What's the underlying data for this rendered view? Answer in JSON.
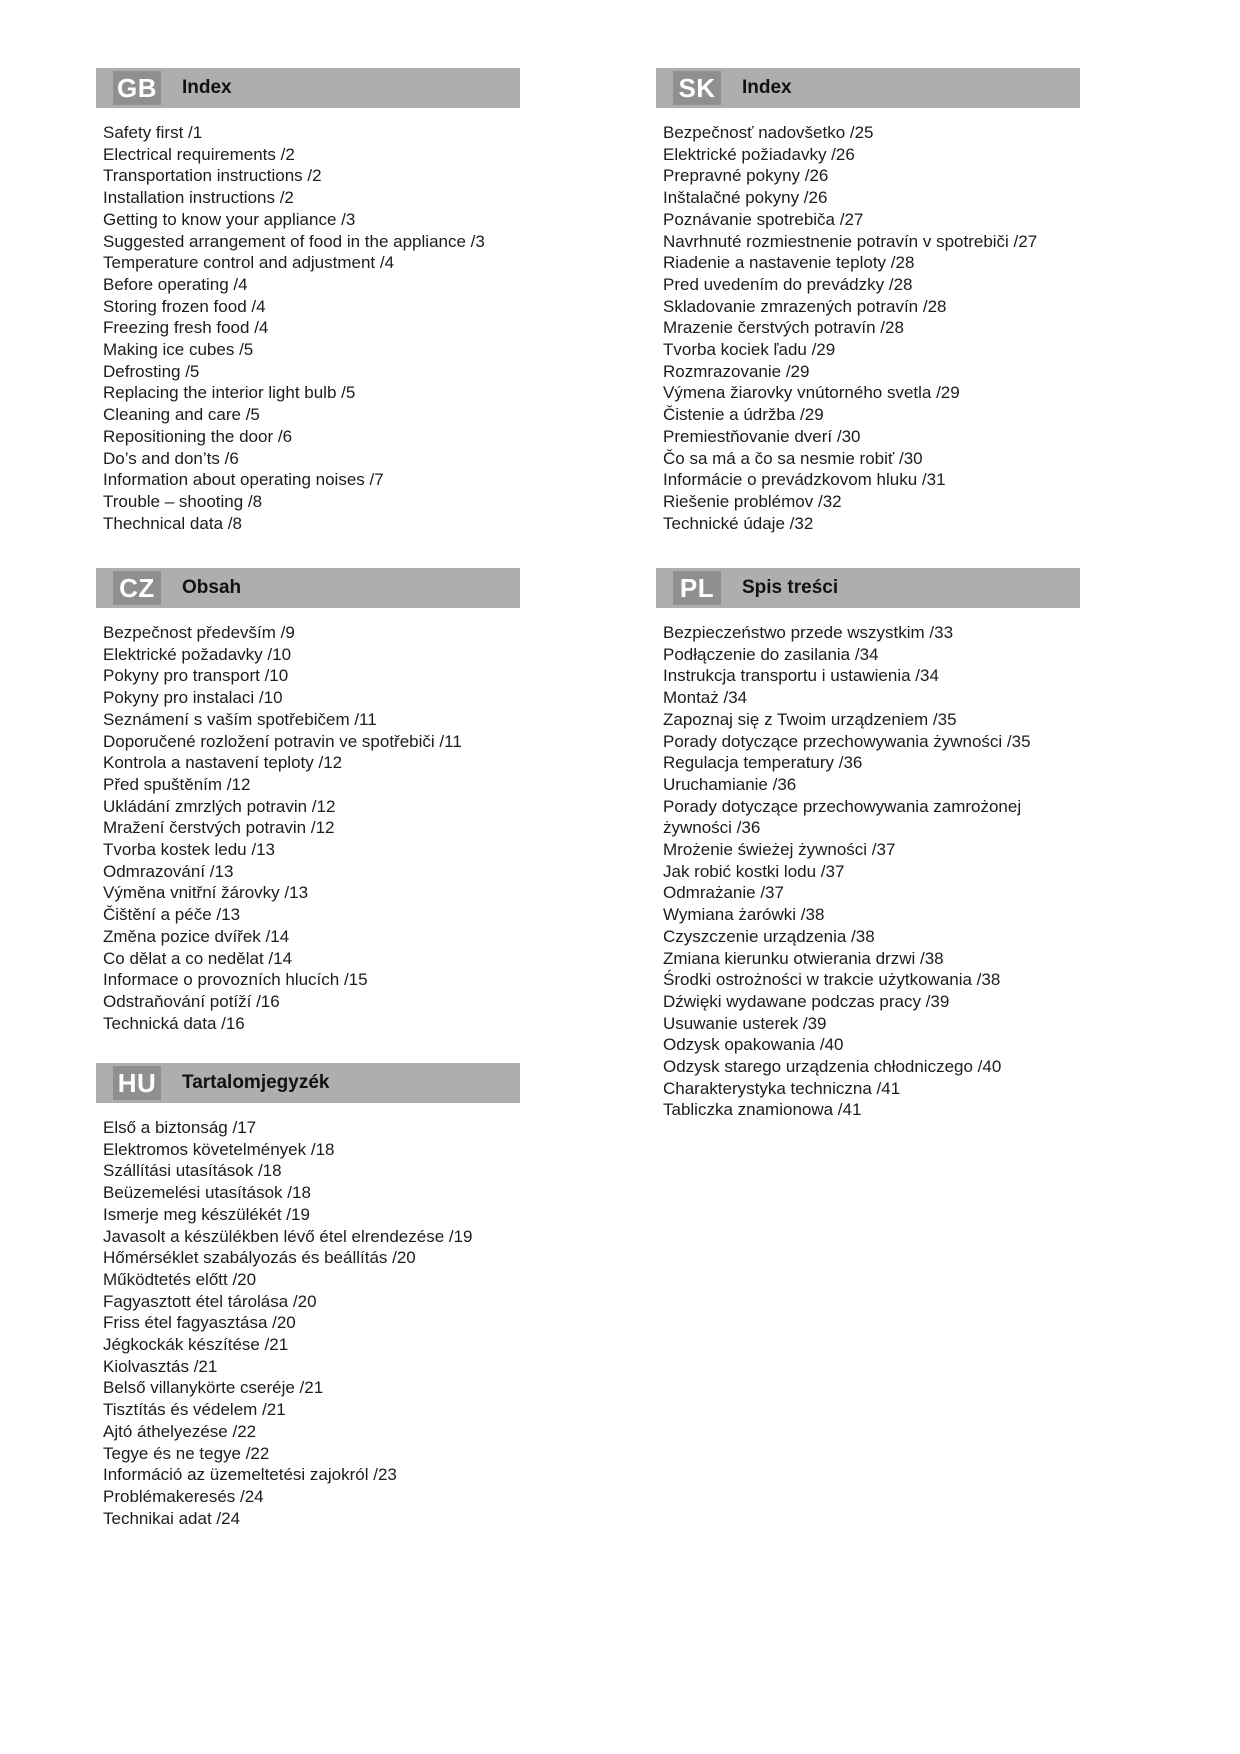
{
  "colors": {
    "page_background": "#ffffff",
    "header_bar": "#aeaeae",
    "language_badge": "#8f8f8f",
    "badge_text": "#ffffff",
    "body_text": "#1c1c1c"
  },
  "sections": [
    {
      "id": "gb",
      "code": "GB",
      "title": "Index",
      "column": "left",
      "items": [
        "Safety first /1",
        "Electrical requirements /2",
        "Transportation instructions /2",
        "Installation instructions /2",
        "Getting to know your appliance /3",
        "Suggested arrangement of food in the appliance /3",
        "Temperature control and adjustment /4",
        "Before operating /4",
        "Storing frozen food /4",
        "Freezing fresh food /4",
        "Making ice cubes /5",
        "Defrosting /5",
        "Replacing the interior light bulb /5",
        "Cleaning and care /5",
        "Repositioning the door /6",
        "Do’s and don’ts /6",
        "Information about operating noises /7",
        "Trouble – shooting /8",
        "Thechnical data /8"
      ]
    },
    {
      "id": "sk",
      "code": "SK",
      "title": "Index",
      "column": "right",
      "items": [
        "Bezpečnosť nadovšetko /25",
        "Elektrické požiadavky /26",
        "Prepravné pokyny /26",
        "Inštalačné pokyny /26",
        "Poznávanie spotrebiča /27",
        "Navrhnuté rozmiestnenie potravín v spotrebiči /27",
        "Riadenie a nastavenie teploty /28",
        "Pred uvedením do prevádzky /28",
        "Skladovanie zmrazených potravín /28",
        "Mrazenie čerstvých potravín /28",
        "Tvorba kociek ľadu /29",
        "Rozmrazovanie /29",
        "Výmena žiarovky vnútorného svetla /29",
        "Čistenie a údržba /29",
        "Premiestňovanie dverí /30",
        "Čo sa má a čo sa nesmie robiť /30",
        "Informácie o prevádzkovom hluku /31",
        "Riešenie problémov /32",
        "Technické údaje /32"
      ]
    },
    {
      "id": "cz",
      "code": "CZ",
      "title": "Obsah",
      "column": "left",
      "items": [
        "Bezpečnost především /9",
        "Elektrické požadavky /10",
        "Pokyny pro transport /10",
        "Pokyny pro instalaci /10",
        "Seznámení s vaším spotřebičem /11",
        "Doporučené rozložení potravin ve spotřebiči /11",
        "Kontrola a nastavení teploty /12",
        "Před spuštěním /12",
        "Ukládání zmrzlých potravin /12",
        "Mražení čerstvých potravin /12",
        "Tvorba kostek ledu /13",
        "Odmrazování /13",
        "Výměna vnitřní žárovky /13",
        "Čištění a péče /13",
        "Změna pozice dvířek /14",
        "Co dělat a co nedělat /14",
        "Informace o provozních hlucích /15",
        "Odstraňování potíží /16",
        "Technická data /16"
      ]
    },
    {
      "id": "pl",
      "code": "PL",
      "title": "Spis treści",
      "column": "right",
      "items": [
        "Bezpieczeństwo przede wszystkim /33",
        "Podłączenie do zasilania /34",
        "Instrukcja transportu i ustawienia /34",
        "Montaż /34",
        "Zapoznaj się z Twoim urządzeniem /35",
        "Porady dotyczące przechowywania żywności /35",
        "Regulacja temperatury /36",
        "Uruchamianie /36",
        "Porady dotyczące przechowywania zamrożonej\nżywności /36",
        "Mrożenie świeżej żywności /37",
        "Jak robić kostki lodu /37",
        "Odmrażanie /37",
        "Wymiana żarówki /38",
        "Czyszczenie urządzenia /38",
        "Zmiana kierunku otwierania drzwi /38",
        "Środki ostrożności w trakcie użytkowania /38",
        "Dźwięki wydawane podczas pracy /39",
        "Usuwanie usterek /39",
        "Odzysk opakowania /40",
        "Odzysk starego urządzenia chłodniczego /40",
        "Charakterystyka techniczna /41",
        "Tabliczka znamionowa /41"
      ]
    },
    {
      "id": "hu",
      "code": "HU",
      "title": "Tartalomjegyzék",
      "column": "left",
      "items": [
        "Első a biztonság /17",
        "Elektromos követelmények /18",
        "Szállítási utasítások /18",
        "Beüzemelési utasítások /18",
        "Ismerje meg készülékét /19",
        "Javasolt a készülékben lévő étel elrendezése /19",
        "Hőmérséklet szabályozás és beállítás /20",
        "Működtetés előtt /20",
        "Fagyasztott étel tárolása /20",
        "Friss étel fagyasztása /20",
        "Jégkockák készítése /21",
        "Kiolvasztás /21",
        "Belső villanykörte cseréje /21",
        "Tisztítás és védelem /21",
        "Ajtó áthelyezése /22",
        "Tegye és ne tegye /22",
        "Információ az üzemeltetési zajokról /23",
        "Problémakeresés /24",
        "Technikai adat /24"
      ]
    }
  ]
}
